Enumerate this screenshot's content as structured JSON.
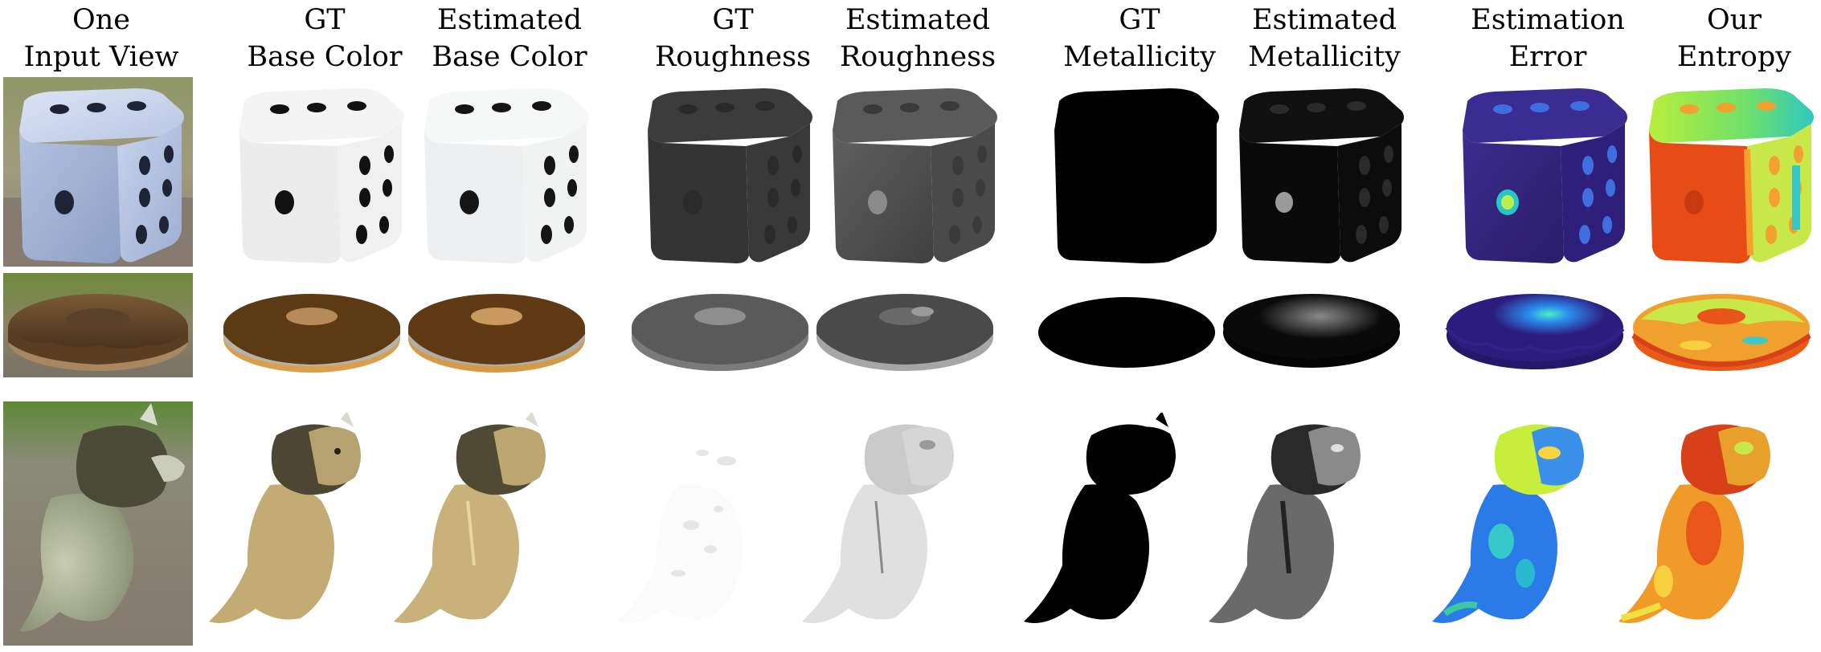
{
  "figure": {
    "columns": [
      {
        "id": "input",
        "line1": "One",
        "line2": "Input View"
      },
      {
        "id": "gt-base",
        "line1": "GT",
        "line2": "Base Color"
      },
      {
        "id": "est-base",
        "line1": "Estimated",
        "line2": "Base Color"
      },
      {
        "id": "gt-rough",
        "line1": "GT",
        "line2": "Roughness"
      },
      {
        "id": "est-rough",
        "line1": "Estimated",
        "line2": "Roughness"
      },
      {
        "id": "gt-metal",
        "line1": "GT",
        "line2": "Metallicity"
      },
      {
        "id": "est-metal",
        "line1": "Estimated",
        "line2": "Metallicity"
      },
      {
        "id": "est-error",
        "line1": "Estimation",
        "line2": "Error"
      },
      {
        "id": "entropy",
        "line1": "Our",
        "line2": "Entropy"
      }
    ],
    "rows": [
      "dice",
      "donut",
      "dinosaur"
    ]
  }
}
